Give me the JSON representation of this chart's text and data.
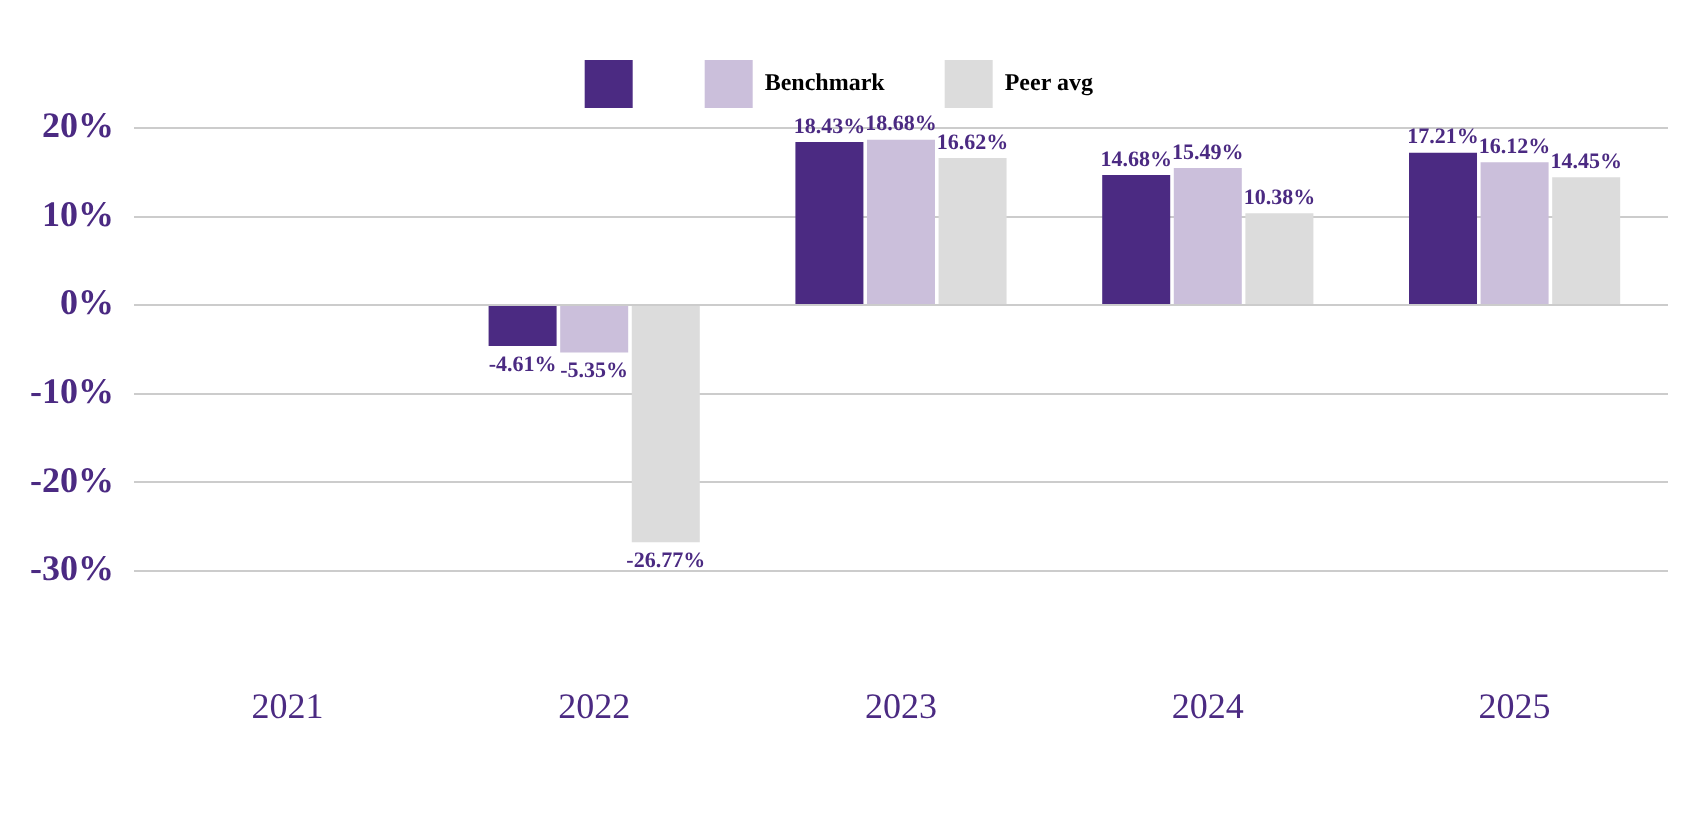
{
  "chart_data": {
    "type": "bar",
    "categories": [
      "2021",
      "2022",
      "2023",
      "2024",
      "2025"
    ],
    "series": [
      {
        "color": "#4b2a82",
        "values": [
          null,
          -4.61,
          18.43,
          14.68,
          17.21
        ],
        "value_labels": [
          null,
          "-4.61%",
          "18.43%",
          "14.68%",
          "17.21%"
        ]
      },
      {
        "name": "Benchmark",
        "color": "#cbbfdb",
        "values": [
          null,
          -5.35,
          18.68,
          15.49,
          16.12
        ],
        "value_labels": [
          null,
          "-5.35%",
          "18.68%",
          "15.49%",
          "16.12%"
        ]
      },
      {
        "name": "Peer avg",
        "color": "#dcdcdc",
        "values": [
          null,
          -26.77,
          16.62,
          10.38,
          14.45
        ],
        "value_labels": [
          null,
          "-26.77%",
          "16.62%",
          "10.38%",
          "14.45%"
        ]
      }
    ],
    "ylim": [
      -30,
      20
    ],
    "yticks": [
      {
        "value": -30,
        "label": "-30%"
      },
      {
        "value": -20,
        "label": "-20%"
      },
      {
        "value": -10,
        "label": "-10%"
      },
      {
        "value": 0,
        "label": "0%"
      },
      {
        "value": 10,
        "label": "10%"
      },
      {
        "value": 20,
        "label": "20%"
      }
    ],
    "grid": "y",
    "legend": "top"
  }
}
